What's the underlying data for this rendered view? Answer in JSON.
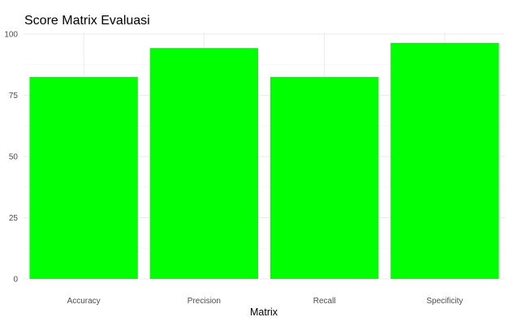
{
  "chart_data": {
    "type": "bar",
    "title": "Score Matrix Evaluasi",
    "xlabel": "Matrix",
    "ylabel": "",
    "categories": [
      "Accuracy",
      "Precision",
      "Recall",
      "Specificity"
    ],
    "values": [
      82.5,
      94.3,
      82.5,
      96.4
    ],
    "ylim": [
      0,
      100
    ],
    "yticks": [
      0,
      25,
      50,
      75,
      100
    ],
    "bar_color": "#00ff00",
    "grid": true,
    "legend": "none"
  }
}
